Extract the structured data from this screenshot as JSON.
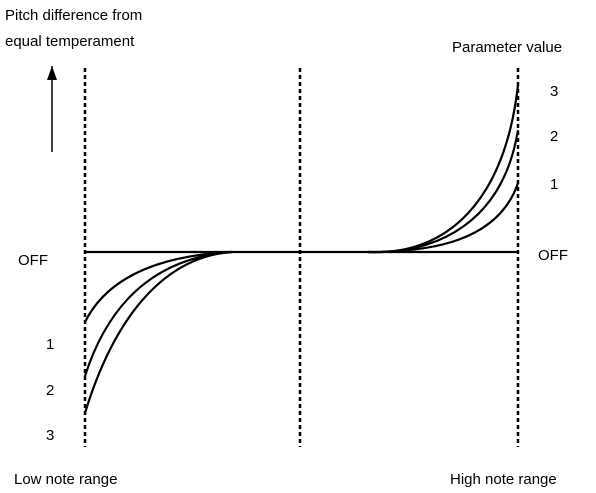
{
  "header": {
    "title_lines": [
      "Pitch difference from",
      "equal temperament"
    ],
    "parameter_label": "Parameter value"
  },
  "left_labels": [
    "OFF",
    "1",
    "2",
    "3"
  ],
  "right_labels": [
    "3",
    "2",
    "1",
    "OFF"
  ],
  "footer": {
    "low": "Low note range",
    "high": "High note range"
  }
}
